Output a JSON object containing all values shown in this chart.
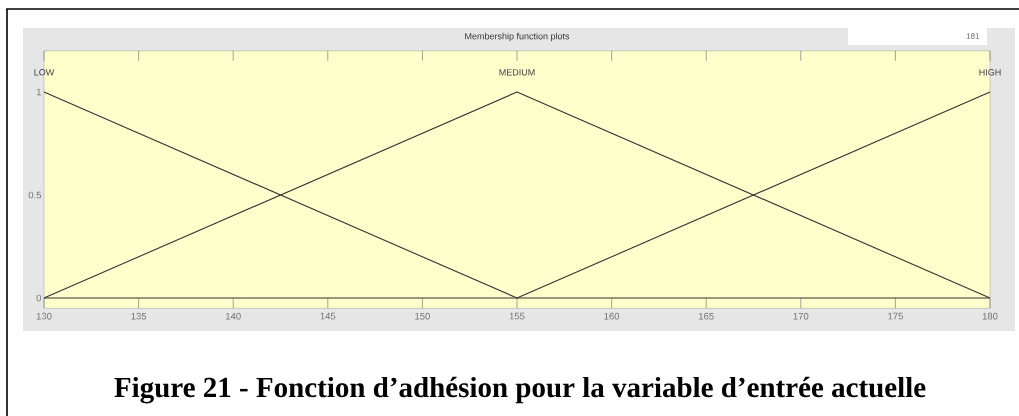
{
  "chart_data": {
    "type": "line",
    "title": "Membership function plots",
    "x": [
      130,
      155,
      180
    ],
    "series": [
      {
        "name": "LOW",
        "color": "#333333",
        "values": [
          1,
          0,
          0
        ]
      },
      {
        "name": "MEDIUM",
        "color": "#333333",
        "values": [
          0,
          1,
          0
        ]
      },
      {
        "name": "HIGH",
        "color": "#333333",
        "values": [
          0,
          0,
          1
        ]
      }
    ],
    "xlim": [
      130,
      180
    ],
    "ylim": [
      -0.05,
      1.2
    ],
    "xticks": [
      130,
      135,
      140,
      145,
      150,
      155,
      160,
      165,
      170,
      175,
      180
    ],
    "yticks": [
      0,
      0.5,
      1
    ],
    "marker": "none",
    "line_style": "solid",
    "annotations": [
      "Figure 21 - Fonction d’adhésion pour la variable d’entrée actuelle",
      "181"
    ]
  }
}
